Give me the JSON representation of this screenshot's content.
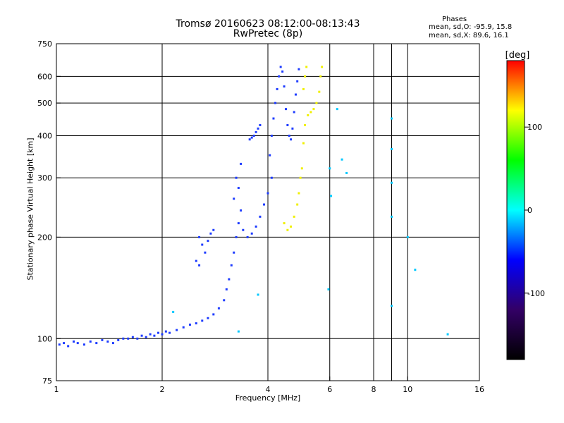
{
  "title": {
    "line1": "Tromsø 20160623 08:12:00-08:13:43",
    "line2": "RwPretec (8p)"
  },
  "phase_info": {
    "heading": "Phases",
    "o_mode": "mean, sd,O: -95.9, 15.8",
    "x_mode": "mean, sd,X:  89.6, 16.1"
  },
  "colorbar": {
    "label": "[deg]",
    "range": [
      -180,
      180
    ],
    "tick_values": [
      100,
      0,
      -100
    ],
    "tick_labels": [
      "100",
      "0",
      "-100"
    ],
    "colors": [
      "#ff0000",
      "#ffff00",
      "#00ff00",
      "#00ffff",
      "#0000ff",
      "#330066",
      "#000000"
    ]
  },
  "chart_data": {
    "type": "scatter",
    "title": "Tromsø 20160623 08:12:00-08:13:43",
    "subtitle": "RwPretec (8p)",
    "xlabel": "Frequency [MHz]",
    "ylabel": "Stationary phase Virtual Height [km]",
    "x_scale": "log",
    "y_scale": "log",
    "xlim": [
      1,
      16
    ],
    "ylim": [
      75,
      750
    ],
    "x_ticks": [
      1,
      2,
      4,
      6,
      8,
      10,
      16
    ],
    "y_ticks": [
      75,
      100,
      200,
      300,
      400,
      500,
      600,
      750
    ],
    "x_gridlines": [
      2,
      4,
      6,
      8,
      9,
      10
    ],
    "y_gridlines": [
      100,
      200,
      300,
      400,
      500,
      600
    ],
    "grid": true,
    "color_by": "phase [deg]",
    "series": [
      {
        "mode": "O",
        "color_phase": -100,
        "color": "#1e3cff",
        "points": [
          [
            1.02,
            96
          ],
          [
            1.05,
            97
          ],
          [
            1.08,
            95
          ],
          [
            1.12,
            98
          ],
          [
            1.15,
            97
          ],
          [
            1.2,
            96
          ],
          [
            1.25,
            98
          ],
          [
            1.3,
            97
          ],
          [
            1.35,
            99
          ],
          [
            1.4,
            98
          ],
          [
            1.45,
            97
          ],
          [
            1.5,
            99
          ],
          [
            1.55,
            100
          ],
          [
            1.6,
            100
          ],
          [
            1.65,
            101
          ],
          [
            1.7,
            100
          ],
          [
            1.75,
            102
          ],
          [
            1.8,
            101
          ],
          [
            1.85,
            103
          ],
          [
            1.9,
            102
          ],
          [
            1.95,
            104
          ],
          [
            2.0,
            103
          ],
          [
            2.05,
            105
          ],
          [
            2.1,
            104
          ],
          [
            2.2,
            106
          ],
          [
            2.3,
            108
          ],
          [
            2.4,
            110
          ],
          [
            2.5,
            111
          ],
          [
            2.6,
            113
          ],
          [
            2.7,
            115
          ],
          [
            2.8,
            118
          ],
          [
            2.9,
            123
          ],
          [
            3.0,
            130
          ],
          [
            3.05,
            140
          ],
          [
            3.1,
            150
          ],
          [
            3.15,
            165
          ],
          [
            3.2,
            180
          ],
          [
            3.25,
            200
          ],
          [
            3.3,
            220
          ],
          [
            3.35,
            240
          ],
          [
            3.2,
            260
          ],
          [
            3.3,
            280
          ],
          [
            3.25,
            300
          ],
          [
            3.35,
            330
          ],
          [
            3.4,
            210
          ],
          [
            3.5,
            200
          ],
          [
            3.6,
            205
          ],
          [
            3.7,
            215
          ],
          [
            3.8,
            230
          ],
          [
            3.9,
            250
          ],
          [
            4.0,
            270
          ],
          [
            4.1,
            300
          ],
          [
            4.05,
            350
          ],
          [
            4.1,
            400
          ],
          [
            4.15,
            450
          ],
          [
            4.2,
            500
          ],
          [
            4.25,
            550
          ],
          [
            4.3,
            600
          ],
          [
            4.35,
            640
          ],
          [
            4.4,
            620
          ],
          [
            4.45,
            560
          ],
          [
            4.5,
            480
          ],
          [
            4.55,
            430
          ],
          [
            4.6,
            400
          ],
          [
            4.65,
            390
          ],
          [
            4.7,
            420
          ],
          [
            4.75,
            470
          ],
          [
            4.8,
            530
          ],
          [
            4.85,
            580
          ],
          [
            4.9,
            630
          ],
          [
            3.55,
            390
          ],
          [
            3.6,
            395
          ],
          [
            3.65,
            400
          ],
          [
            3.7,
            410
          ],
          [
            3.75,
            420
          ],
          [
            3.8,
            430
          ],
          [
            2.55,
            200
          ],
          [
            2.6,
            190
          ],
          [
            2.65,
            180
          ],
          [
            2.7,
            195
          ],
          [
            2.5,
            170
          ],
          [
            2.55,
            165
          ],
          [
            2.75,
            205
          ],
          [
            2.8,
            210
          ]
        ]
      },
      {
        "mode": "X",
        "color_phase": 100,
        "color": "#f0f000",
        "points": [
          [
            4.45,
            220
          ],
          [
            4.55,
            210
          ],
          [
            4.65,
            215
          ],
          [
            4.75,
            230
          ],
          [
            4.85,
            250
          ],
          [
            4.9,
            270
          ],
          [
            4.95,
            300
          ],
          [
            5.0,
            320
          ],
          [
            5.05,
            380
          ],
          [
            5.1,
            430
          ],
          [
            5.2,
            460
          ],
          [
            5.3,
            470
          ],
          [
            5.4,
            480
          ],
          [
            5.5,
            500
          ],
          [
            5.6,
            540
          ],
          [
            5.65,
            600
          ],
          [
            5.7,
            640
          ],
          [
            5.05,
            550
          ],
          [
            5.1,
            600
          ],
          [
            5.15,
            640
          ]
        ]
      },
      {
        "mode": "sparse",
        "color_phase": 0,
        "color": "#00c8ff",
        "points": [
          [
            6.0,
            320
          ],
          [
            6.05,
            265
          ],
          [
            6.3,
            480
          ],
          [
            6.5,
            340
          ],
          [
            6.7,
            310
          ],
          [
            9.0,
            450
          ],
          [
            9.0,
            230
          ],
          [
            9.0,
            125
          ],
          [
            10.0,
            200
          ],
          [
            10.5,
            160
          ],
          [
            9.0,
            365
          ],
          [
            9.0,
            290
          ],
          [
            5.95,
            140
          ],
          [
            13.0,
            103
          ],
          [
            3.75,
            135
          ],
          [
            2.15,
            120
          ],
          [
            3.3,
            105
          ]
        ]
      }
    ]
  }
}
